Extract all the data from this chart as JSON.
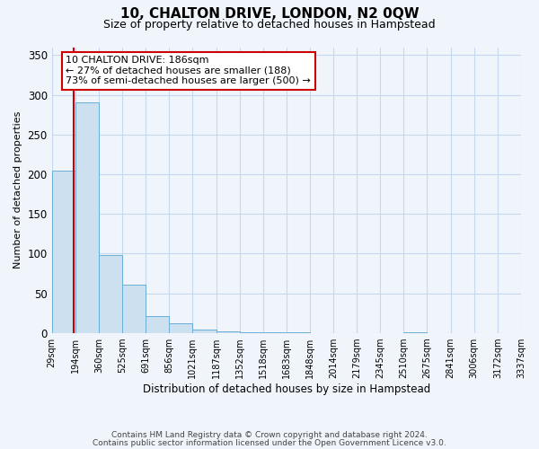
{
  "title": "10, CHALTON DRIVE, LONDON, N2 0QW",
  "subtitle": "Size of property relative to detached houses in Hampstead",
  "xlabel": "Distribution of detached houses by size in Hampstead",
  "ylabel": "Number of detached properties",
  "bar_values": [
    204,
    291,
    98,
    61,
    21,
    12,
    5,
    2,
    1,
    1,
    1,
    0,
    0,
    0,
    0,
    1,
    0,
    0,
    0,
    0
  ],
  "bin_labels": [
    "29sqm",
    "194sqm",
    "360sqm",
    "525sqm",
    "691sqm",
    "856sqm",
    "1021sqm",
    "1187sqm",
    "1352sqm",
    "1518sqm",
    "1683sqm",
    "1848sqm",
    "2014sqm",
    "2179sqm",
    "2345sqm",
    "2510sqm",
    "2675sqm",
    "2841sqm",
    "3006sqm",
    "3172sqm",
    "3337sqm"
  ],
  "bin_edges": [
    29,
    194,
    360,
    525,
    691,
    856,
    1021,
    1187,
    1352,
    1518,
    1683,
    1848,
    2014,
    2179,
    2345,
    2510,
    2675,
    2841,
    3006,
    3172,
    3337
  ],
  "bar_color": "#cde0f0",
  "bar_edge_color": "#6aaed6",
  "property_line_x": 186,
  "property_line_color": "#cc0000",
  "ylim": [
    0,
    360
  ],
  "yticks": [
    0,
    50,
    100,
    150,
    200,
    250,
    300,
    350
  ],
  "annotation_text": "10 CHALTON DRIVE: 186sqm\n← 27% of detached houses are smaller (188)\n73% of semi-detached houses are larger (500) →",
  "annotation_box_color": "#ffffff",
  "annotation_box_edge": "#cc0000",
  "footer_line1": "Contains HM Land Registry data © Crown copyright and database right 2024.",
  "footer_line2": "Contains public sector information licensed under the Open Government Licence v3.0.",
  "background_color": "#f0f5fc",
  "grid_color": "#c5d8ee"
}
